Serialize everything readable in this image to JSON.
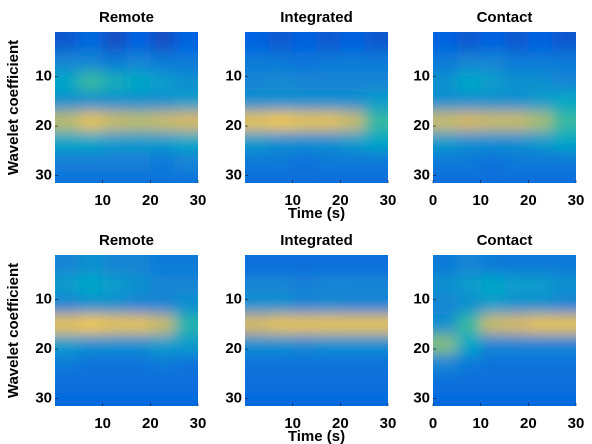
{
  "chart_data": [
    {
      "type": "heatmap",
      "title": "Remote",
      "ylabel": "Wavelet coefficient",
      "xlim": [
        0,
        30
      ],
      "ylim": [
        1,
        31.5
      ],
      "xticks": [
        10,
        20,
        30
      ],
      "yticks": [
        10,
        20,
        30
      ],
      "x": [
        2.5,
        7.5,
        12.5,
        17.5,
        22.5,
        27.5
      ],
      "y": [
        3,
        7,
        11,
        15,
        19,
        23,
        27,
        31
      ],
      "z": [
        [
          0.12,
          0.18,
          0.1,
          0.15,
          0.1,
          0.15
        ],
        [
          0.3,
          0.3,
          0.25,
          0.3,
          0.25,
          0.25
        ],
        [
          0.45,
          0.6,
          0.5,
          0.45,
          0.4,
          0.35
        ],
        [
          0.35,
          0.35,
          0.35,
          0.35,
          0.35,
          0.4
        ],
        [
          0.78,
          0.85,
          0.8,
          0.78,
          0.8,
          0.82
        ],
        [
          0.45,
          0.45,
          0.4,
          0.4,
          0.4,
          0.45
        ],
        [
          0.28,
          0.28,
          0.28,
          0.28,
          0.25,
          0.3
        ],
        [
          0.22,
          0.22,
          0.22,
          0.22,
          0.22,
          0.22
        ]
      ]
    },
    {
      "type": "heatmap",
      "title": "Integrated",
      "xlabel": "Time (s)",
      "xlim": [
        0,
        30
      ],
      "ylim": [
        1,
        31.5
      ],
      "xticks": [
        10,
        20,
        30
      ],
      "yticks": [
        10,
        20,
        30
      ],
      "x": [
        2.5,
        7.5,
        12.5,
        17.5,
        22.5,
        27.5
      ],
      "y": [
        3,
        7,
        11,
        15,
        19,
        23,
        27,
        31
      ],
      "z": [
        [
          0.15,
          0.12,
          0.15,
          0.12,
          0.15,
          0.12
        ],
        [
          0.25,
          0.25,
          0.22,
          0.25,
          0.25,
          0.25
        ],
        [
          0.3,
          0.32,
          0.3,
          0.3,
          0.3,
          0.3
        ],
        [
          0.35,
          0.35,
          0.35,
          0.35,
          0.35,
          0.4
        ],
        [
          0.85,
          0.88,
          0.85,
          0.85,
          0.8,
          0.6
        ],
        [
          0.4,
          0.35,
          0.35,
          0.35,
          0.4,
          0.45
        ],
        [
          0.25,
          0.25,
          0.22,
          0.25,
          0.25,
          0.25
        ],
        [
          0.2,
          0.2,
          0.2,
          0.2,
          0.2,
          0.2
        ]
      ]
    },
    {
      "type": "heatmap",
      "title": "Contact",
      "xlim": [
        0,
        30
      ],
      "ylim": [
        1,
        31.5
      ],
      "xticks": [
        0,
        10,
        20,
        30
      ],
      "yticks": [
        10,
        20,
        30
      ],
      "x": [
        2.5,
        7.5,
        12.5,
        17.5,
        22.5,
        27.5
      ],
      "y": [
        3,
        7,
        11,
        15,
        19,
        23,
        27,
        31
      ],
      "z": [
        [
          0.15,
          0.12,
          0.15,
          0.12,
          0.15,
          0.12
        ],
        [
          0.25,
          0.3,
          0.3,
          0.25,
          0.25,
          0.25
        ],
        [
          0.35,
          0.45,
          0.4,
          0.35,
          0.35,
          0.3
        ],
        [
          0.35,
          0.35,
          0.35,
          0.35,
          0.4,
          0.45
        ],
        [
          0.8,
          0.82,
          0.8,
          0.8,
          0.75,
          0.6
        ],
        [
          0.4,
          0.35,
          0.35,
          0.35,
          0.4,
          0.45
        ],
        [
          0.25,
          0.25,
          0.22,
          0.25,
          0.25,
          0.25
        ],
        [
          0.2,
          0.2,
          0.2,
          0.2,
          0.2,
          0.2
        ]
      ]
    },
    {
      "type": "heatmap",
      "title": "Remote",
      "ylabel": "Wavelet coefficient",
      "xlim": [
        0,
        30
      ],
      "ylim": [
        1,
        31.5
      ],
      "xticks": [
        10,
        20,
        30
      ],
      "yticks": [
        10,
        20,
        30
      ],
      "x": [
        2.5,
        7.5,
        12.5,
        17.5,
        22.5,
        27.5
      ],
      "y": [
        3,
        7,
        11,
        15,
        19,
        23,
        27,
        31
      ],
      "z": [
        [
          0.3,
          0.35,
          0.3,
          0.3,
          0.25,
          0.25
        ],
        [
          0.4,
          0.45,
          0.4,
          0.35,
          0.3,
          0.3
        ],
        [
          0.3,
          0.35,
          0.35,
          0.3,
          0.3,
          0.35
        ],
        [
          0.85,
          0.88,
          0.85,
          0.85,
          0.8,
          0.55
        ],
        [
          0.4,
          0.35,
          0.35,
          0.35,
          0.4,
          0.4
        ],
        [
          0.25,
          0.22,
          0.22,
          0.22,
          0.25,
          0.22
        ],
        [
          0.2,
          0.2,
          0.2,
          0.2,
          0.2,
          0.2
        ],
        [
          0.18,
          0.18,
          0.18,
          0.18,
          0.18,
          0.18
        ]
      ]
    },
    {
      "type": "heatmap",
      "title": "Integrated",
      "xlabel": "Time (s)",
      "xlim": [
        0,
        30
      ],
      "ylim": [
        1,
        31.5
      ],
      "xticks": [
        10,
        20,
        30
      ],
      "yticks": [
        10,
        20,
        30
      ],
      "x": [
        2.5,
        7.5,
        12.5,
        17.5,
        22.5,
        27.5
      ],
      "y": [
        3,
        7,
        11,
        15,
        19,
        23,
        27,
        31
      ],
      "z": [
        [
          0.2,
          0.2,
          0.2,
          0.2,
          0.2,
          0.2
        ],
        [
          0.3,
          0.3,
          0.28,
          0.3,
          0.3,
          0.3
        ],
        [
          0.35,
          0.35,
          0.3,
          0.32,
          0.3,
          0.3
        ],
        [
          0.82,
          0.85,
          0.85,
          0.85,
          0.85,
          0.85
        ],
        [
          0.35,
          0.35,
          0.32,
          0.35,
          0.35,
          0.35
        ],
        [
          0.22,
          0.22,
          0.22,
          0.22,
          0.22,
          0.22
        ],
        [
          0.2,
          0.2,
          0.2,
          0.2,
          0.2,
          0.2
        ],
        [
          0.18,
          0.18,
          0.18,
          0.18,
          0.18,
          0.18
        ]
      ]
    },
    {
      "type": "heatmap",
      "title": "Contact",
      "xlim": [
        0,
        30
      ],
      "ylim": [
        1,
        31.5
      ],
      "xticks": [
        0,
        10,
        20,
        30
      ],
      "yticks": [
        10,
        20,
        30
      ],
      "x": [
        2.5,
        7.5,
        12.5,
        17.5,
        22.5,
        27.5
      ],
      "y": [
        3,
        7,
        11,
        15,
        19,
        23,
        27,
        31
      ],
      "z": [
        [
          0.25,
          0.3,
          0.25,
          0.25,
          0.25,
          0.25
        ],
        [
          0.35,
          0.4,
          0.45,
          0.4,
          0.4,
          0.35
        ],
        [
          0.3,
          0.35,
          0.4,
          0.35,
          0.35,
          0.3
        ],
        [
          0.35,
          0.6,
          0.8,
          0.82,
          0.85,
          0.85
        ],
        [
          0.7,
          0.45,
          0.3,
          0.3,
          0.3,
          0.3
        ],
        [
          0.3,
          0.25,
          0.22,
          0.22,
          0.22,
          0.22
        ],
        [
          0.2,
          0.2,
          0.2,
          0.2,
          0.2,
          0.2
        ],
        [
          0.18,
          0.18,
          0.18,
          0.18,
          0.18,
          0.18
        ]
      ]
    }
  ]
}
